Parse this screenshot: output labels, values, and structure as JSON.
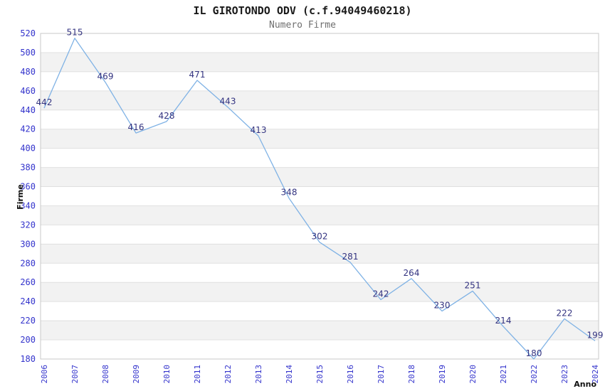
{
  "title": "IL GIROTONDO ODV (c.f.94049460218)",
  "subtitle": "Numero Firme",
  "chart_data": {
    "type": "line",
    "title": "IL GIROTONDO ODV (c.f.94049460218)",
    "subtitle": "Numero Firme",
    "xlabel": "Anno",
    "ylabel": "Firme",
    "x": [
      2006,
      2007,
      2008,
      2009,
      2010,
      2011,
      2012,
      2013,
      2014,
      2015,
      2016,
      2017,
      2018,
      2019,
      2020,
      2021,
      2022,
      2023,
      2024
    ],
    "series": [
      {
        "name": "Numero Firme",
        "values": [
          442,
          515,
          469,
          416,
          428,
          471,
          443,
          413,
          348,
          302,
          281,
          242,
          264,
          230,
          251,
          214,
          180,
          222,
          199
        ]
      }
    ],
    "ylim": [
      180,
      520
    ],
    "ytick_step": 20,
    "grid": true,
    "bands": "alternating-horizontal",
    "legend_position": "none",
    "point_labels": true,
    "colors": {
      "line": "#7fb2e5",
      "data_label": "#333380",
      "tick_label": "#3333cc",
      "band": "#f2f2f2",
      "gridline": "#e0e0e0",
      "border": "#c9c9c9",
      "axis_title": "#111111",
      "title": "#1a1a1a",
      "subtitle": "#6f6f6f"
    }
  }
}
